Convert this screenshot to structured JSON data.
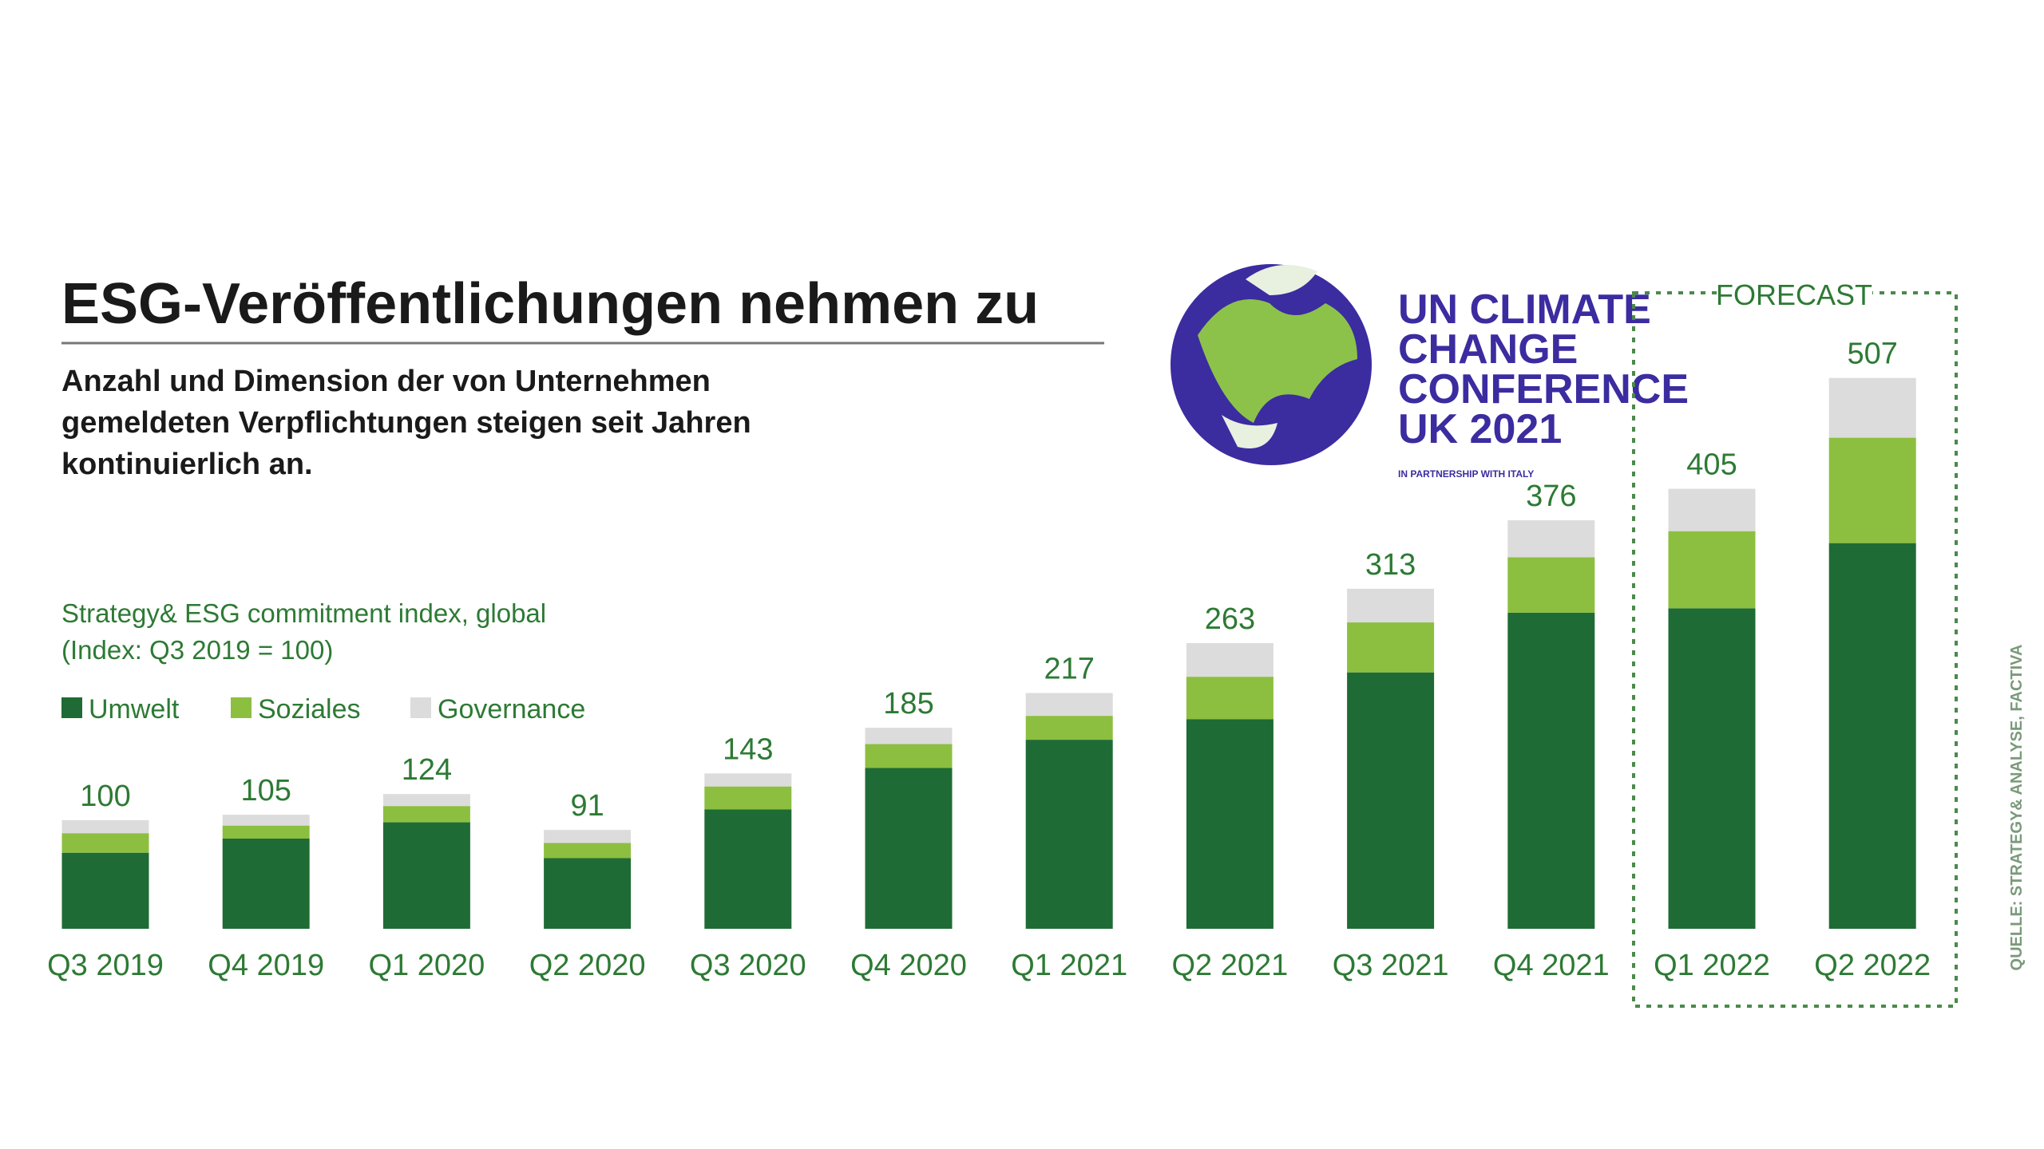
{
  "chart_data": {
    "type": "stacked_bar",
    "title": "ESG-Veröffentlichungen nehmen zu",
    "subtitle": [
      "Anzahl und Dimension der von Unternehmen",
      "gemeldeten Verpflichtungen steigen seit Jahren",
      "kontinuierlich an."
    ],
    "note": [
      "Strategy& ESG commitment index, global",
      "(Index: Q3 2019 = 100)"
    ],
    "categories": [
      "Q3 2019",
      "Q4 2019",
      "Q1 2020",
      "Q2 2020",
      "Q3 2020",
      "Q4 2020",
      "Q1 2021",
      "Q2 2021",
      "Q3 2021",
      "Q4 2021",
      "Q1 2022",
      "Q2 2022"
    ],
    "series": [
      {
        "name": "Umwelt",
        "color": "#1f6b35",
        "values": [
          70,
          83,
          98,
          65,
          110,
          148,
          174,
          193,
          236,
          291,
          295,
          355
        ]
      },
      {
        "name": "Soziales",
        "color": "#8cbf3f",
        "values": [
          18,
          12,
          15,
          14,
          21,
          22,
          22,
          39,
          46,
          51,
          71,
          97
        ]
      },
      {
        "name": "Governance",
        "color": "#dcdcdc",
        "values": [
          12,
          10,
          11,
          12,
          12,
          15,
          21,
          31,
          31,
          34,
          39,
          55
        ]
      }
    ],
    "totals": [
      100,
      105,
      124,
      91,
      143,
      185,
      217,
      263,
      313,
      376,
      405,
      507
    ],
    "forecast_label": "FORECAST",
    "ylim": [
      0,
      520
    ]
  },
  "logo": {
    "lines": [
      "UN CLIMATE",
      "CHANGE",
      "CONFERENCE",
      "UK 2021"
    ],
    "partner": "IN PARTNERSHIP WITH ITALY"
  },
  "source": "QUELLE: STRATEGY& ANALYSE, FACTIVA"
}
